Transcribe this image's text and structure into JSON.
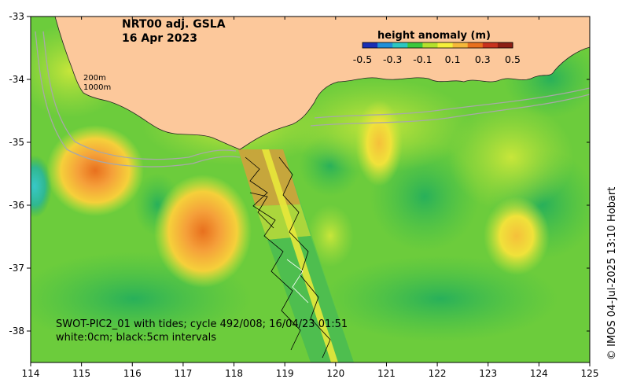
{
  "title_line1": "NRT00 adj. GSLA",
  "title_line2": "16 Apr 2023",
  "legend": {
    "title": "height anomaly (m)",
    "ticks": [
      "-0.5",
      "-0.3",
      "-0.1",
      "0.1",
      "0.3",
      "0.5"
    ],
    "colors": [
      "#1a2fb4",
      "#1f8fd8",
      "#2cc7c0",
      "#3cc83c",
      "#b4e12c",
      "#f5f03a",
      "#f5b83a",
      "#e8701e",
      "#c8321e",
      "#8c1e14"
    ]
  },
  "depth_labels": [
    "200m",
    "1000m"
  ],
  "caption_line1": "SWOT-PIC2_01 with tides; cycle 492/008; 16/04/23 01:51",
  "caption_line2": "white:0cm; black:5cm intervals",
  "credit": "© IMOS 04-Jul-2025 13:10 Hobart",
  "x_ticks": [
    "114",
    "115",
    "116",
    "117",
    "118",
    "119",
    "120",
    "121",
    "122",
    "123",
    "124",
    "125"
  ],
  "y_ticks": [
    "-33",
    "-34",
    "-35",
    "-36",
    "-37",
    "-38"
  ],
  "map_data": {
    "lon_range": [
      114,
      125
    ],
    "lat_range": [
      -38.5,
      -33
    ],
    "land_color": "#fcc89b",
    "anomalies": [
      {
        "lon": 115.3,
        "lat": -35.4,
        "value": 0.38
      },
      {
        "lon": 117.3,
        "lat": -36.4,
        "value": 0.36
      },
      {
        "lon": 120.8,
        "lat": -35.0,
        "value": 0.2
      },
      {
        "lon": 123.5,
        "lat": -36.5,
        "value": 0.28
      },
      {
        "lon": 114.1,
        "lat": -35.7,
        "value": -0.2
      }
    ]
  }
}
